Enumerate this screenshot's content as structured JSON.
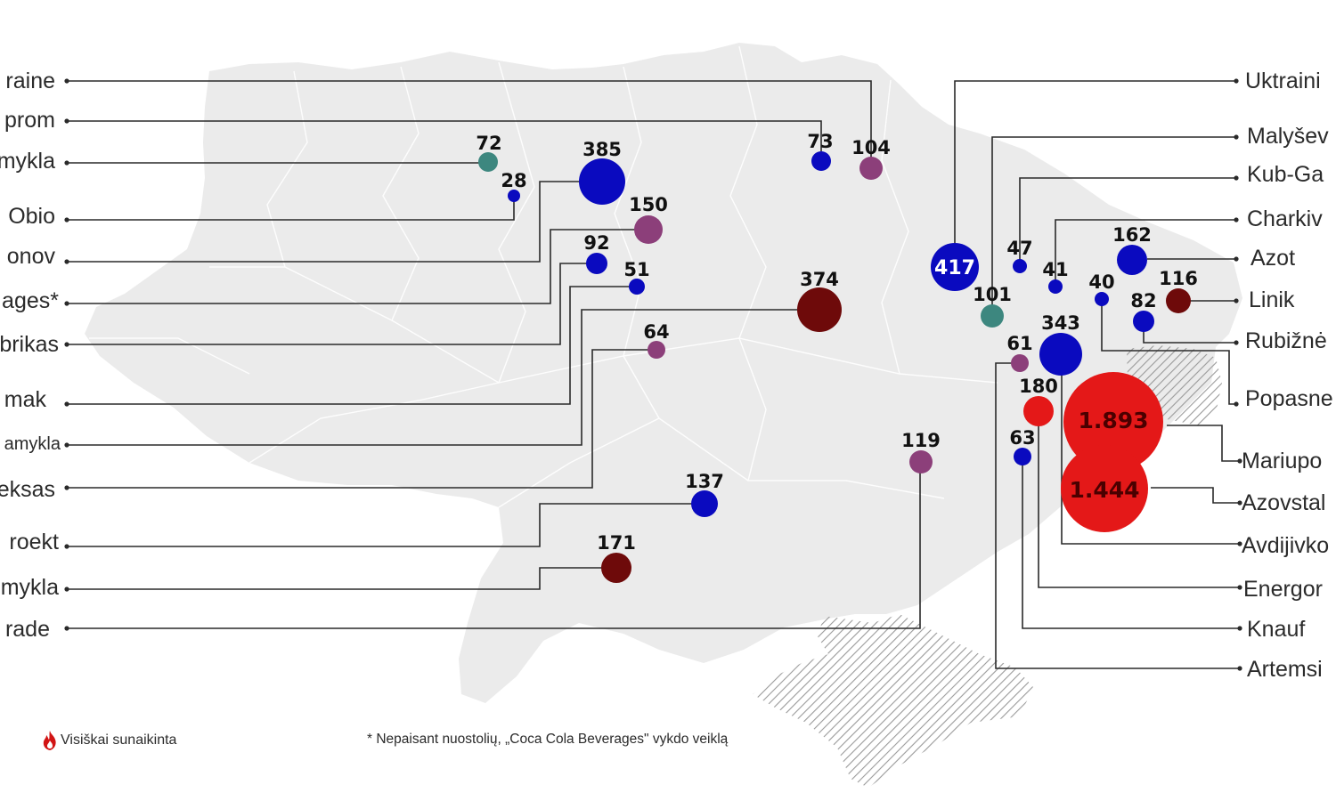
{
  "colors": {
    "map_fill": "#ebebeb",
    "blue": "#0a0abf",
    "purple": "#8c3f7a",
    "teal": "#3d877f",
    "darkred": "#6e0a0a",
    "red": "#e41818",
    "line": "#2a2a2a"
  },
  "left_labels": [
    {
      "id": "l1",
      "text": "raine"
    },
    {
      "id": "l2",
      "text": "prom"
    },
    {
      "id": "l3",
      "text": "mykla"
    },
    {
      "id": "l4",
      "text": "Obio"
    },
    {
      "id": "l5",
      "text": "onov"
    },
    {
      "id": "l6",
      "text": "ages*"
    },
    {
      "id": "l7",
      "text": "brikas"
    },
    {
      "id": "l8",
      "text": "mak"
    },
    {
      "id": "l9",
      "text": "amykla"
    },
    {
      "id": "l10",
      "text": "eksas"
    },
    {
      "id": "l11",
      "text": "roekt"
    },
    {
      "id": "l12",
      "text": "mykla"
    },
    {
      "id": "l13",
      "text": "rade"
    }
  ],
  "right_labels": [
    {
      "id": "r1",
      "text": "Uktraini"
    },
    {
      "id": "r2",
      "text": "Malyšev"
    },
    {
      "id": "r3",
      "text": "Kub-Ga"
    },
    {
      "id": "r4",
      "text": "Charkiv"
    },
    {
      "id": "r5",
      "text": "Azot"
    },
    {
      "id": "r6",
      "text": "Linik"
    },
    {
      "id": "r7",
      "text": "Rubižnė"
    },
    {
      "id": "r8",
      "text": "Popasne"
    },
    {
      "id": "r9",
      "text": "Mariupo"
    },
    {
      "id": "r10",
      "text": "Azovstal"
    },
    {
      "id": "r11",
      "text": "Avdijivko"
    },
    {
      "id": "r12",
      "text": "Energor"
    },
    {
      "id": "r13",
      "text": "Knauf"
    },
    {
      "id": "r14",
      "text": "Artemsi"
    }
  ],
  "markers": [
    {
      "id": "m72",
      "value": "72",
      "color": "teal"
    },
    {
      "id": "m28",
      "value": "28",
      "color": "blue"
    },
    {
      "id": "m385",
      "value": "385",
      "color": "blue"
    },
    {
      "id": "m150",
      "value": "150",
      "color": "purple"
    },
    {
      "id": "m92",
      "value": "92",
      "color": "blue"
    },
    {
      "id": "m51",
      "value": "51",
      "color": "blue"
    },
    {
      "id": "m374",
      "value": "374",
      "color": "darkred"
    },
    {
      "id": "m64",
      "value": "64",
      "color": "purple"
    },
    {
      "id": "m73",
      "value": "73",
      "color": "blue"
    },
    {
      "id": "m104",
      "value": "104",
      "color": "purple"
    },
    {
      "id": "m119",
      "value": "119",
      "color": "purple"
    },
    {
      "id": "m137",
      "value": "137",
      "color": "blue"
    },
    {
      "id": "m171",
      "value": "171",
      "color": "darkred"
    },
    {
      "id": "m417",
      "value": "417",
      "color": "blue"
    },
    {
      "id": "m101",
      "value": "101",
      "color": "teal"
    },
    {
      "id": "m47",
      "value": "47",
      "color": "blue"
    },
    {
      "id": "m41",
      "value": "41",
      "color": "blue"
    },
    {
      "id": "m162",
      "value": "162",
      "color": "blue"
    },
    {
      "id": "m40",
      "value": "40",
      "color": "blue"
    },
    {
      "id": "m116",
      "value": "116",
      "color": "darkred"
    },
    {
      "id": "m82",
      "value": "82",
      "color": "blue"
    },
    {
      "id": "m343",
      "value": "343",
      "color": "blue"
    },
    {
      "id": "m61",
      "value": "61",
      "color": "purple"
    },
    {
      "id": "m180",
      "value": "180",
      "color": "red"
    },
    {
      "id": "m63",
      "value": "63",
      "color": "blue"
    },
    {
      "id": "m1893",
      "value": "1.893",
      "color": "red"
    },
    {
      "id": "m1444",
      "value": "1.444",
      "color": "red"
    }
  ],
  "legend": {
    "icon": "flame-icon",
    "text": "Visiškai sunaikinta"
  },
  "footnote": "* Nepaisant nuostolių, „Coca Cola Beverages\" vykdo veiklą"
}
